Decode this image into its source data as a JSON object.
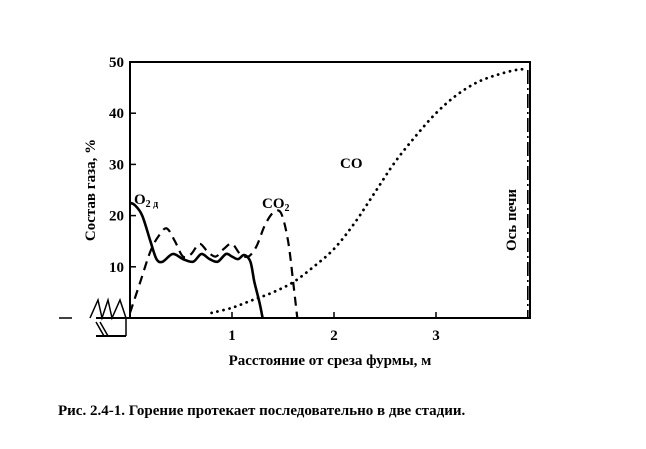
{
  "chart_data": {
    "type": "line",
    "xlabel": "Расстояние от среза фурмы, м",
    "ylabel": "Состав газа, %",
    "xlim": [
      0,
      3.95
    ],
    "ylim": [
      0,
      50
    ],
    "xticks": [
      1,
      2,
      3
    ],
    "yticks": [
      10,
      20,
      30,
      40,
      50
    ],
    "grid": false,
    "series": [
      {
        "name": "O₂ д",
        "label_main": "O",
        "label_sub": "2 д",
        "style": "solid",
        "x": [
          0,
          0.05,
          0.12,
          0.2,
          0.26,
          0.32,
          0.42,
          0.52,
          0.62,
          0.7,
          0.78,
          0.86,
          0.94,
          1.0,
          1.06,
          1.12,
          1.18,
          1.22,
          1.27,
          1.3
        ],
        "y": [
          22.5,
          22,
          20,
          15,
          11.5,
          11,
          12.5,
          11.5,
          11,
          12.5,
          11.5,
          11,
          12.5,
          12,
          11.5,
          12.3,
          11,
          7,
          3,
          0
        ]
      },
      {
        "name": "CO₂",
        "label_main": "CO",
        "label_sub": "2",
        "style": "dashed",
        "x": [
          0,
          0.1,
          0.2,
          0.28,
          0.36,
          0.44,
          0.52,
          0.6,
          0.68,
          0.76,
          0.84,
          0.92,
          1.0,
          1.08,
          1.16,
          1.24,
          1.32,
          1.4,
          1.48,
          1.55,
          1.6,
          1.64
        ],
        "y": [
          1,
          7,
          13,
          16,
          17.5,
          15,
          12,
          12.5,
          14.5,
          13,
          12,
          13.5,
          14.5,
          12.5,
          12,
          14,
          18,
          20.5,
          20.5,
          15,
          7,
          0
        ]
      },
      {
        "name": "CO",
        "label_main": "CO",
        "label_sub": "",
        "style": "dotted",
        "x": [
          0.8,
          1.0,
          1.2,
          1.4,
          1.6,
          1.8,
          2.0,
          2.2,
          2.4,
          2.6,
          2.8,
          3.0,
          3.2,
          3.4,
          3.6,
          3.8,
          3.9
        ],
        "y": [
          1,
          2,
          3.5,
          5,
          7,
          10,
          13.5,
          18.5,
          24.5,
          30.5,
          35.5,
          40,
          43.5,
          46,
          47.5,
          48.5,
          48.5
        ]
      }
    ],
    "annotations": {
      "furnace_axis": {
        "x": 3.9,
        "label": "Ось печи"
      }
    }
  },
  "caption": "Рис. 2.4-1. Горение протекает последовательно в две стадии."
}
